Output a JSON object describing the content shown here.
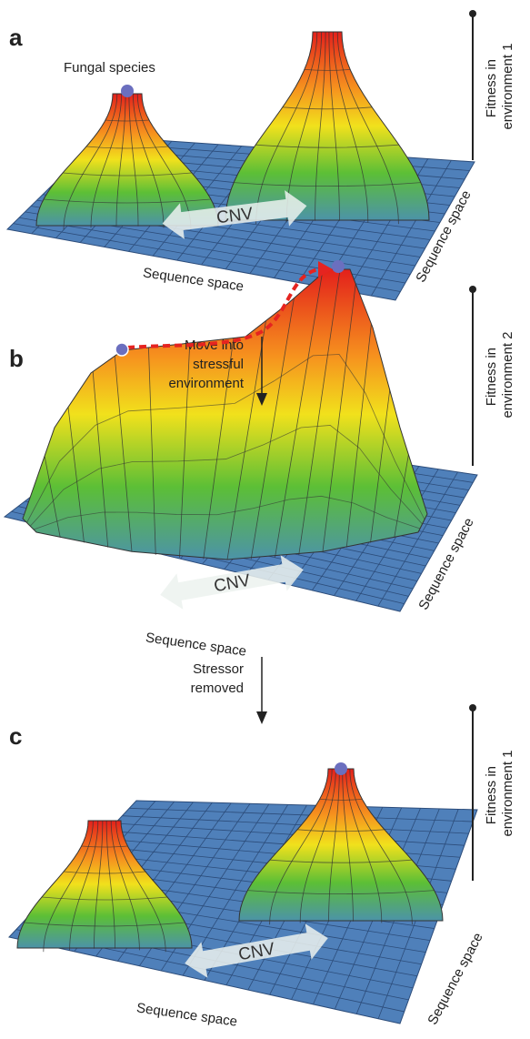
{
  "panels": [
    {
      "label": "a",
      "point_label": "Fungal species",
      "arrow_label": "CNV",
      "x_axis": "Sequence space",
      "y_axis": "Sequence space",
      "z_axis": [
        "Fitness in",
        "environment 1"
      ]
    },
    {
      "label": "b",
      "arrow_label": "CNV",
      "x_axis": "Sequence space",
      "y_axis": "Sequence space",
      "z_axis": [
        "Fitness in",
        "environment 2"
      ]
    },
    {
      "label": "c",
      "arrow_label": "CNV",
      "x_axis": "Sequence space",
      "y_axis": "Sequence space",
      "z_axis": [
        "Fitness in",
        "environment 1"
      ]
    }
  ],
  "transitions": [
    {
      "text": [
        "Move into",
        "stressful",
        "environment"
      ]
    },
    {
      "text": [
        "Stressor",
        "removed"
      ]
    }
  ]
}
